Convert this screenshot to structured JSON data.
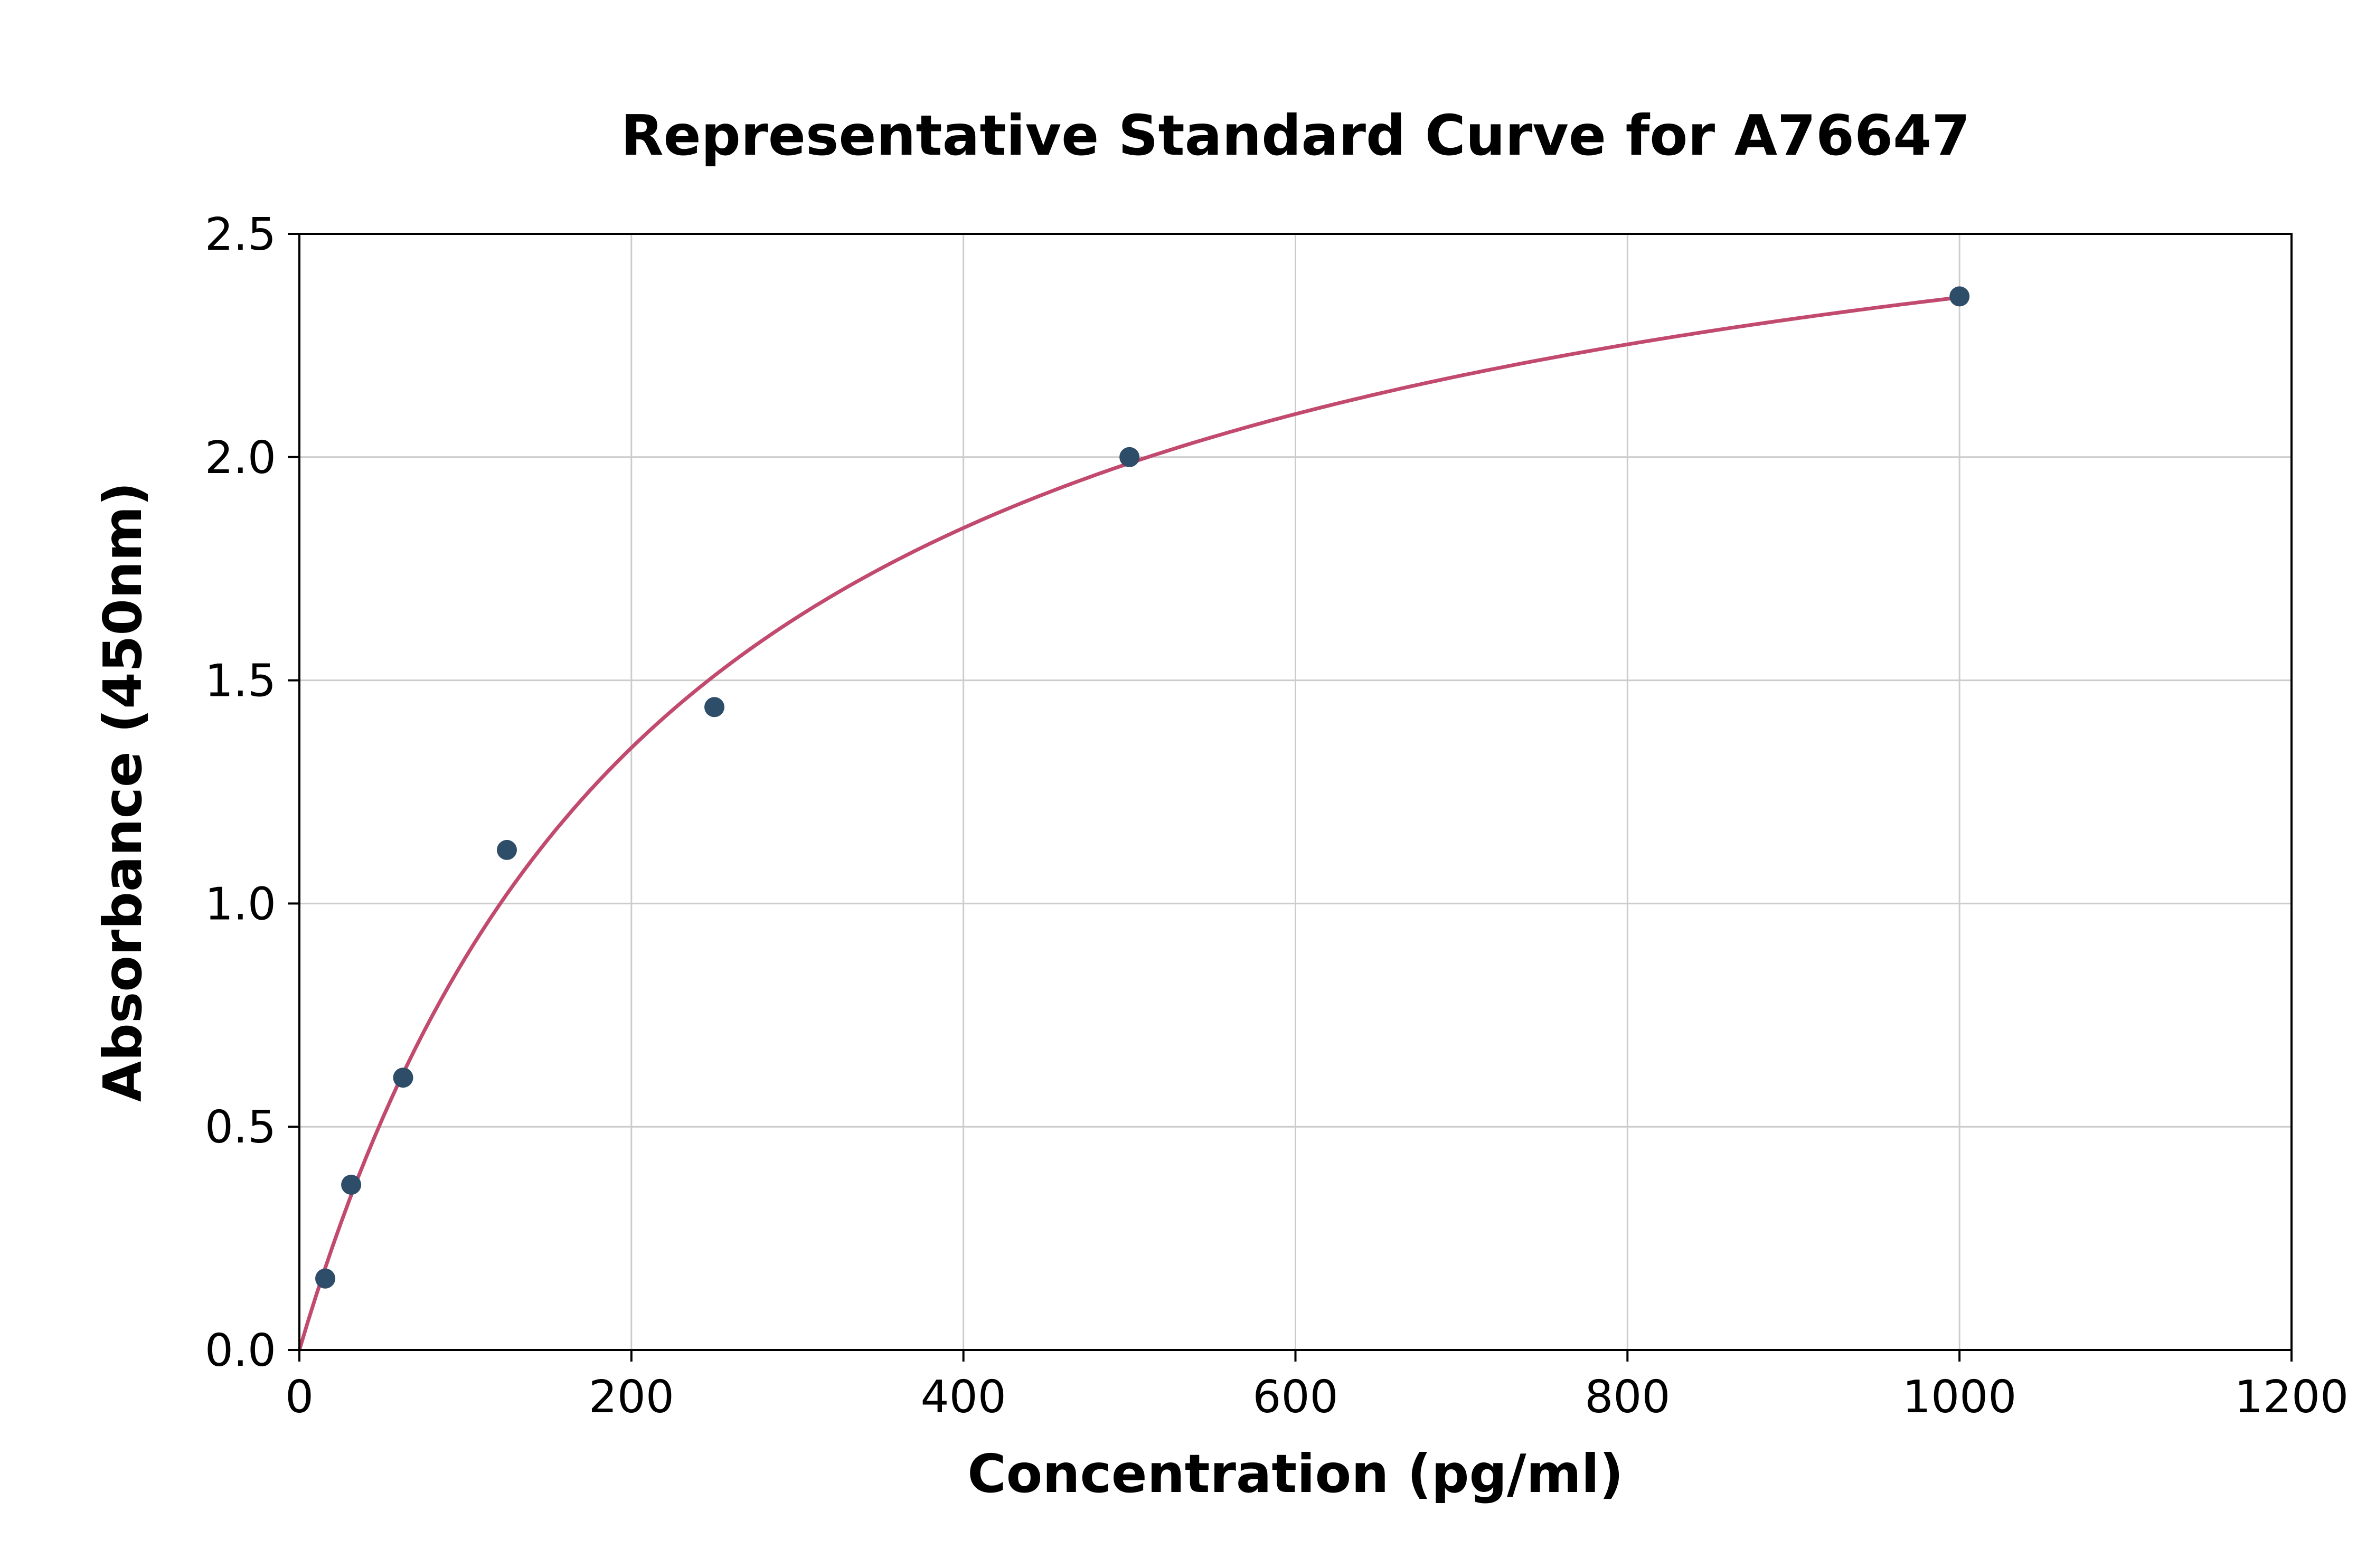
{
  "figure": {
    "background": "#ffffff"
  },
  "chart_data": {
    "type": "scatter",
    "title": "Representative Standard Curve for A76647",
    "xlabel": "Concentration (pg/ml)",
    "ylabel": "Absorbance (450nm)",
    "xlim": [
      0,
      1200
    ],
    "ylim": [
      0,
      2.5
    ],
    "x_ticks": [
      0,
      200,
      400,
      600,
      800,
      1000,
      1200
    ],
    "x_tick_labels": [
      "0",
      "200",
      "400",
      "600",
      "800",
      "1000",
      "1200"
    ],
    "y_ticks": [
      0,
      0.5,
      1.0,
      1.5,
      2.0,
      2.5
    ],
    "y_tick_labels": [
      "0.0",
      "0.5",
      "1.0",
      "1.5",
      "2.0",
      "2.5"
    ],
    "grid": true,
    "grid_color": "#cccccc",
    "legend": "none",
    "axis_color": "#000000",
    "series": [
      {
        "name": "standard-points",
        "type": "scatter",
        "color": "#2e4d68",
        "points": [
          {
            "x": 15.6,
            "y": 0.16
          },
          {
            "x": 31.2,
            "y": 0.37
          },
          {
            "x": 62.5,
            "y": 0.61
          },
          {
            "x": 125,
            "y": 1.12
          },
          {
            "x": 250,
            "y": 1.44
          },
          {
            "x": 500,
            "y": 2.0
          },
          {
            "x": 1000,
            "y": 2.36
          }
        ]
      },
      {
        "name": "fitted-curve",
        "type": "line",
        "color": "#c14a6e",
        "fit_model": "y = a*x / (b + x)",
        "a": 2.9,
        "b": 230,
        "x_range": [
          0,
          1000
        ]
      }
    ]
  }
}
